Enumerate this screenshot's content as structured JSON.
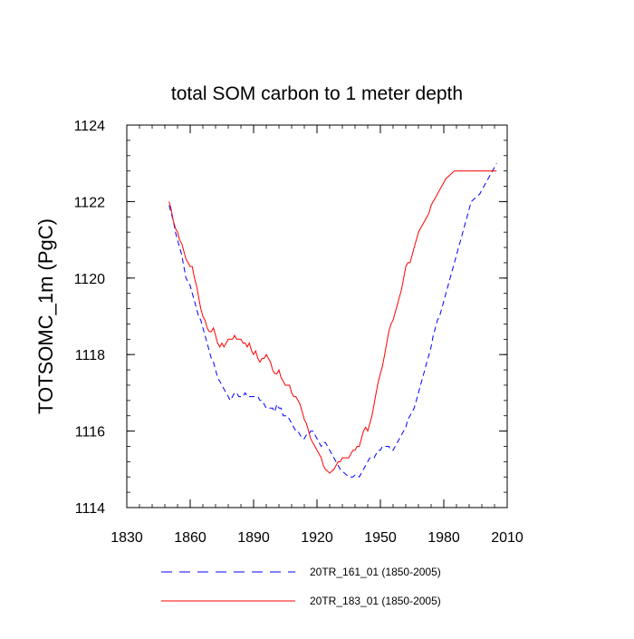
{
  "chart_data": {
    "type": "line",
    "title": "total SOM carbon to 1 meter depth",
    "xlabel": "",
    "ylabel": "TOTSOMC_1m  (PgC)",
    "xlim": [
      1830,
      2010
    ],
    "ylim": [
      1114,
      1124
    ],
    "xticks": [
      1830,
      1860,
      1890,
      1920,
      1950,
      1980,
      2010
    ],
    "yticks": [
      1114,
      1116,
      1118,
      1120,
      1122,
      1124
    ],
    "x_minor_step": 6,
    "y_minor_step": 0.4,
    "grid": false,
    "legend_position": "bottom",
    "series": [
      {
        "name": "20TR_161_01 (1850-2005)",
        "color": "#0000ff",
        "dash": "dashed",
        "x": [
          1850,
          1851,
          1852,
          1853,
          1854,
          1855,
          1856,
          1857,
          1858,
          1859,
          1860,
          1861,
          1862,
          1863,
          1864,
          1865,
          1866,
          1867,
          1868,
          1869,
          1870,
          1871,
          1872,
          1873,
          1874,
          1875,
          1876,
          1877,
          1878,
          1879,
          1880,
          1881,
          1882,
          1883,
          1884,
          1885,
          1886,
          1887,
          1888,
          1889,
          1890,
          1891,
          1892,
          1893,
          1894,
          1895,
          1896,
          1897,
          1898,
          1899,
          1900,
          1901,
          1902,
          1903,
          1904,
          1905,
          1906,
          1907,
          1908,
          1909,
          1910,
          1911,
          1912,
          1913,
          1914,
          1915,
          1916,
          1917,
          1918,
          1919,
          1920,
          1921,
          1922,
          1923,
          1924,
          1925,
          1926,
          1927,
          1928,
          1929,
          1930,
          1931,
          1932,
          1933,
          1934,
          1935,
          1936,
          1937,
          1938,
          1939,
          1940,
          1941,
          1942,
          1943,
          1944,
          1945,
          1946,
          1947,
          1948,
          1949,
          1950,
          1951,
          1952,
          1953,
          1954,
          1955,
          1956,
          1957,
          1958,
          1959,
          1960,
          1961,
          1962,
          1963,
          1964,
          1965,
          1966,
          1967,
          1968,
          1969,
          1970,
          1971,
          1972,
          1973,
          1974,
          1975,
          1976,
          1977,
          1978,
          1979,
          1980,
          1981,
          1982,
          1983,
          1984,
          1985,
          1986,
          1987,
          1988,
          1989,
          1990,
          1991,
          1992,
          1993,
          1994,
          1995,
          1996,
          1997,
          1998,
          1999,
          2000,
          2001,
          2002,
          2003,
          2004,
          2005
        ],
        "y": [
          1121.9,
          1121.7,
          1121.5,
          1121.2,
          1121.0,
          1120.8,
          1120.6,
          1120.3,
          1120.0,
          1119.9,
          1119.8,
          1119.6,
          1119.4,
          1119.2,
          1119.0,
          1118.9,
          1118.7,
          1118.5,
          1118.3,
          1118.1,
          1117.9,
          1117.8,
          1117.6,
          1117.4,
          1117.3,
          1117.2,
          1117.1,
          1117.0,
          1116.9,
          1116.8,
          1116.9,
          1117.0,
          1117.0,
          1116.9,
          1116.9,
          1116.9,
          1117.0,
          1116.9,
          1116.9,
          1116.9,
          1116.9,
          1116.9,
          1116.9,
          1116.8,
          1116.8,
          1116.7,
          1116.6,
          1116.6,
          1116.6,
          1116.6,
          1116.5,
          1116.7,
          1116.6,
          1116.6,
          1116.4,
          1116.4,
          1116.4,
          1116.3,
          1116.2,
          1116.1,
          1116.0,
          1116.0,
          1115.9,
          1115.8,
          1115.8,
          1115.9,
          1115.9,
          1116.0,
          1116.0,
          1115.9,
          1115.8,
          1115.7,
          1115.6,
          1115.7,
          1115.7,
          1115.6,
          1115.5,
          1115.4,
          1115.3,
          1115.2,
          1115.1,
          1115.0,
          1114.95,
          1114.9,
          1114.85,
          1114.8,
          1114.8,
          1114.8,
          1114.85,
          1114.85,
          1114.8,
          1114.9,
          1115.0,
          1115.1,
          1115.2,
          1115.3,
          1115.3,
          1115.3,
          1115.4,
          1115.5,
          1115.5,
          1115.6,
          1115.6,
          1115.6,
          1115.6,
          1115.5,
          1115.5,
          1115.6,
          1115.7,
          1115.8,
          1115.9,
          1116.0,
          1116.1,
          1116.3,
          1116.4,
          1116.5,
          1116.6,
          1116.8,
          1117.0,
          1117.2,
          1117.4,
          1117.6,
          1117.8,
          1118.0,
          1118.2,
          1118.5,
          1118.7,
          1118.9,
          1119.0,
          1119.2,
          1119.4,
          1119.6,
          1119.8,
          1120.0,
          1120.2,
          1120.4,
          1120.6,
          1120.8,
          1121.0,
          1121.2,
          1121.4,
          1121.6,
          1121.8,
          1122.0,
          1122.05,
          1122.1,
          1122.15,
          1122.2,
          1122.3,
          1122.4,
          1122.5,
          1122.6,
          1122.7,
          1122.8,
          1122.9,
          1123.0
        ]
      },
      {
        "name": "20TR_183_01 (1850-2005)",
        "color": "#ff0000",
        "dash": "solid",
        "x": [
          1850,
          1851,
          1852,
          1853,
          1854,
          1855,
          1856,
          1857,
          1858,
          1859,
          1860,
          1861,
          1862,
          1863,
          1864,
          1865,
          1866,
          1867,
          1868,
          1869,
          1870,
          1871,
          1872,
          1873,
          1874,
          1875,
          1876,
          1877,
          1878,
          1879,
          1880,
          1881,
          1882,
          1883,
          1884,
          1885,
          1886,
          1887,
          1888,
          1889,
          1890,
          1891,
          1892,
          1893,
          1894,
          1895,
          1896,
          1897,
          1898,
          1899,
          1900,
          1901,
          1902,
          1903,
          1904,
          1905,
          1906,
          1907,
          1908,
          1909,
          1910,
          1911,
          1912,
          1913,
          1914,
          1915,
          1916,
          1917,
          1918,
          1919,
          1920,
          1921,
          1922,
          1923,
          1924,
          1925,
          1926,
          1927,
          1928,
          1929,
          1930,
          1931,
          1932,
          1933,
          1934,
          1935,
          1936,
          1937,
          1938,
          1939,
          1940,
          1941,
          1942,
          1943,
          1944,
          1945,
          1946,
          1947,
          1948,
          1949,
          1950,
          1951,
          1952,
          1953,
          1954,
          1955,
          1956,
          1957,
          1958,
          1959,
          1960,
          1961,
          1962,
          1963,
          1964,
          1965,
          1966,
          1967,
          1968,
          1969,
          1970,
          1971,
          1972,
          1973,
          1974,
          1975,
          1976,
          1977,
          1978,
          1979,
          1980,
          1981,
          1982,
          1983,
          1984,
          1985,
          1986,
          1987,
          1988,
          1989,
          1990,
          1991,
          1992,
          1993,
          1994,
          1995,
          1996,
          1997,
          1998,
          1999,
          2000,
          2001,
          2002,
          2003,
          2004,
          2005
        ],
        "y": [
          1122.0,
          1121.8,
          1121.5,
          1121.3,
          1121.2,
          1121.0,
          1120.9,
          1120.7,
          1120.5,
          1120.4,
          1120.3,
          1120.3,
          1120.0,
          1119.8,
          1119.5,
          1119.2,
          1119.0,
          1118.9,
          1118.7,
          1118.6,
          1118.6,
          1118.7,
          1118.5,
          1118.3,
          1118.2,
          1118.3,
          1118.2,
          1118.3,
          1118.4,
          1118.4,
          1118.4,
          1118.5,
          1118.4,
          1118.4,
          1118.4,
          1118.3,
          1118.3,
          1118.2,
          1118.3,
          1118.1,
          1118.0,
          1118.1,
          1117.9,
          1117.8,
          1117.9,
          1117.9,
          1118.0,
          1117.9,
          1117.8,
          1117.6,
          1117.5,
          1117.5,
          1117.6,
          1117.4,
          1117.3,
          1117.2,
          1117.2,
          1117.2,
          1117.0,
          1116.9,
          1116.9,
          1116.8,
          1116.7,
          1116.5,
          1116.3,
          1116.2,
          1116.0,
          1115.8,
          1115.7,
          1115.6,
          1115.5,
          1115.4,
          1115.3,
          1115.1,
          1115.0,
          1114.95,
          1114.9,
          1114.95,
          1115.0,
          1115.1,
          1115.2,
          1115.2,
          1115.3,
          1115.3,
          1115.3,
          1115.3,
          1115.4,
          1115.5,
          1115.5,
          1115.6,
          1115.6,
          1115.8,
          1116.0,
          1116.1,
          1116.0,
          1116.2,
          1116.4,
          1116.7,
          1117.0,
          1117.3,
          1117.5,
          1117.7,
          1118.0,
          1118.3,
          1118.6,
          1118.8,
          1118.9,
          1119.1,
          1119.3,
          1119.5,
          1119.7,
          1120.0,
          1120.3,
          1120.4,
          1120.4,
          1120.6,
          1120.8,
          1121.0,
          1121.2,
          1121.3,
          1121.4,
          1121.5,
          1121.6,
          1121.7,
          1121.9,
          1122.0,
          1122.1,
          1122.2,
          1122.3,
          1122.4,
          1122.5,
          1122.6,
          1122.65,
          1122.7,
          1122.75,
          1122.8,
          1122.8,
          1122.8,
          1122.8,
          1122.8,
          1122.8,
          1122.8,
          1122.8,
          1122.8,
          1122.8,
          1122.8,
          1122.8,
          1122.8,
          1122.8,
          1122.8,
          1122.8,
          1122.8,
          1122.8,
          1122.8,
          1122.8,
          1122.8
        ]
      }
    ]
  }
}
